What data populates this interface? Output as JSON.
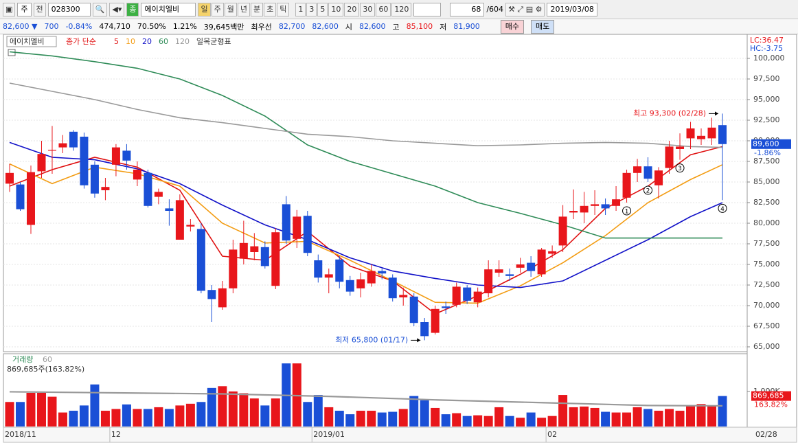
{
  "toolbar": {
    "period_type": "주",
    "market": "전",
    "code": "028300",
    "badge": "종",
    "name": "에이치엘비",
    "periods": [
      "일",
      "주",
      "월",
      "년",
      "분",
      "초",
      "틱"
    ],
    "active_period": "일",
    "intervals": [
      "1",
      "3",
      "5",
      "10",
      "20",
      "30",
      "60",
      "120"
    ],
    "count": "68",
    "total": "/604",
    "date": "2019/03/08"
  },
  "quote": {
    "fields": [
      {
        "text": "82,600 ▼",
        "tone": "down"
      },
      {
        "text": "700",
        "tone": "down"
      },
      {
        "text": "-0.84%",
        "tone": "down"
      },
      {
        "text": "474,710",
        "tone": "plain"
      },
      {
        "text": "70.50%",
        "tone": "plain"
      },
      {
        "text": "1.21%",
        "tone": "plain"
      },
      {
        "text": "39,645백만",
        "tone": "plain"
      },
      {
        "text": "최우선",
        "tone": "plain"
      },
      {
        "text": "82,700",
        "tone": "down"
      },
      {
        "text": "82,600",
        "tone": "down"
      },
      {
        "text": "시",
        "tone": "plain"
      },
      {
        "text": "82,600",
        "tone": "down"
      },
      {
        "text": "고",
        "tone": "plain"
      },
      {
        "text": "85,100",
        "tone": "up"
      },
      {
        "text": "저",
        "tone": "plain"
      },
      {
        "text": "81,900",
        "tone": "down"
      }
    ],
    "buttons": [
      "매수",
      "매도"
    ]
  },
  "chart_data": [
    {
      "type": "candlestick",
      "legend_name": "에이치엘비",
      "ma_label": "종가 단순",
      "ichimoku": "일목균형표",
      "side_labels": [
        "LC:36.47",
        "HC:-3.75"
      ],
      "up_color": "#e8161b",
      "down_color": "#1a4fd6",
      "open": [
        84800,
        84700,
        79800,
        86300,
        88800,
        89200,
        91100,
        90500,
        87100,
        84000,
        87100,
        88800,
        85300,
        86100,
        83200,
        81800,
        78000,
        79600,
        79300,
        71900,
        69800,
        72100,
        75700,
        76500,
        77100,
        72400,
        82300,
        78100,
        80900,
        75500,
        73400,
        75600,
        73100,
        72100,
        72700,
        74200,
        73400,
        71000,
        71100,
        68000,
        66700,
        69900,
        70100,
        72200,
        70400,
        71500,
        74000,
        73800,
        74600,
        75200,
        73800,
        76300,
        77300,
        81300,
        81300,
        82100,
        82300,
        82100,
        83100,
        86100,
        86900,
        84600,
        86700,
        89000,
        90300,
        90200,
        90300,
        91900
      ],
      "high": [
        87200,
        85000,
        87000,
        90000,
        91800,
        90700,
        91300,
        91000,
        87500,
        85500,
        89600,
        89600,
        87500,
        86500,
        84200,
        82900,
        83500,
        80500,
        80000,
        72500,
        73000,
        78000,
        80300,
        78800,
        77800,
        79400,
        83300,
        81600,
        81500,
        76200,
        74500,
        76000,
        73600,
        74000,
        75000,
        74500,
        73800,
        72200,
        71500,
        68500,
        70000,
        70500,
        72800,
        72500,
        72200,
        75500,
        75500,
        74500,
        75800,
        76000,
        77000,
        77300,
        82200,
        84100,
        83800,
        84000,
        83000,
        84500,
        86500,
        87800,
        88000,
        86800,
        90000,
        90900,
        92300,
        91500,
        92800,
        93300
      ],
      "low": [
        83800,
        81500,
        78700,
        85500,
        86000,
        88500,
        88800,
        84200,
        83100,
        82800,
        85700,
        86500,
        84500,
        81900,
        82300,
        79700,
        78000,
        79000,
        71500,
        68000,
        69500,
        71500,
        75000,
        75500,
        74500,
        72000,
        77500,
        77000,
        76000,
        72800,
        71500,
        72100,
        71200,
        71000,
        72300,
        73200,
        70500,
        70000,
        67500,
        65800,
        66500,
        69000,
        69800,
        70200,
        69800,
        71000,
        73500,
        73000,
        74000,
        73500,
        73500,
        75800,
        76500,
        80500,
        80000,
        81000,
        81000,
        81500,
        82500,
        85000,
        85000,
        83000,
        86000,
        87700,
        89000,
        89500,
        89500,
        82800
      ],
      "close": [
        86100,
        81700,
        86200,
        88400,
        88900,
        89700,
        89200,
        84600,
        83600,
        84400,
        89200,
        87600,
        86500,
        82100,
        83800,
        81500,
        82800,
        79800,
        71800,
        70800,
        72100,
        76800,
        77600,
        77200,
        74800,
        78900,
        77900,
        80800,
        76400,
        73400,
        73800,
        72900,
        71700,
        73200,
        74200,
        73900,
        70900,
        71300,
        67900,
        66300,
        69600,
        69700,
        72300,
        70600,
        71700,
        74400,
        74400,
        73600,
        75000,
        74200,
        76800,
        76600,
        80800,
        81500,
        82100,
        82300,
        81800,
        82900,
        86100,
        86900,
        85400,
        86400,
        89300,
        89300,
        91500,
        90600,
        91600,
        89600
      ],
      "series": [
        {
          "name": "5",
          "color": "#e01010",
          "x": [
            0,
            4,
            8,
            12,
            16,
            20,
            24,
            28,
            32,
            36,
            40,
            44,
            48,
            52,
            56,
            60,
            64,
            67
          ],
          "values": [
            84500,
            86500,
            88000,
            86800,
            84000,
            76000,
            75500,
            79000,
            74800,
            73000,
            69000,
            71200,
            73800,
            76800,
            81800,
            84500,
            88300,
            89300
          ]
        },
        {
          "name": "10",
          "color": "#f39c12",
          "x": [
            0,
            4,
            8,
            12,
            16,
            20,
            24,
            28,
            32,
            36,
            40,
            44,
            48,
            52,
            56,
            60,
            64,
            67
          ],
          "values": [
            87200,
            84800,
            86800,
            86000,
            84500,
            80000,
            77600,
            77800,
            75500,
            73000,
            70400,
            70300,
            72400,
            75200,
            78500,
            82500,
            85300,
            87100
          ]
        },
        {
          "name": "20",
          "color": "#1010c8",
          "x": [
            0,
            4,
            8,
            12,
            16,
            20,
            24,
            28,
            32,
            36,
            40,
            44,
            48,
            52,
            56,
            60,
            64,
            67
          ],
          "values": [
            89800,
            88000,
            87700,
            86600,
            84800,
            82200,
            79800,
            78000,
            75800,
            74200,
            73300,
            72500,
            72200,
            73000,
            75500,
            78000,
            80800,
            82500
          ]
        },
        {
          "name": "60",
          "color": "#2e8b57",
          "x": [
            0,
            4,
            8,
            12,
            16,
            20,
            24,
            28,
            32,
            36,
            40,
            44,
            48,
            52,
            56,
            60,
            64,
            67
          ],
          "values": [
            100800,
            100300,
            99600,
            98800,
            97500,
            95500,
            93000,
            89500,
            87500,
            86000,
            84500,
            82500,
            81200,
            79800,
            78200,
            78200,
            78200,
            78200
          ]
        },
        {
          "name": "120",
          "color": "#999999",
          "x": [
            0,
            4,
            8,
            12,
            16,
            20,
            24,
            28,
            32,
            36,
            40,
            44,
            48,
            52,
            56,
            60,
            64,
            67
          ],
          "values": [
            97000,
            96000,
            95000,
            93800,
            92800,
            92200,
            91500,
            90800,
            90500,
            90000,
            89700,
            89400,
            89500,
            89700,
            89800,
            89700,
            89300,
            89200
          ]
        }
      ],
      "ylim": [
        64250,
        102250
      ],
      "yticks": [
        {
          "value": 65000,
          "label": "65,000"
        },
        {
          "value": 67500,
          "label": "67,500"
        },
        {
          "value": 70000,
          "label": "70,000"
        },
        {
          "value": 72500,
          "label": "72,500"
        },
        {
          "value": 75000,
          "label": "75,000"
        },
        {
          "value": 77500,
          "label": "77,500"
        },
        {
          "value": 80000,
          "label": "80,000"
        },
        {
          "value": 82500,
          "label": "82,500"
        },
        {
          "value": 85000,
          "label": "85,000"
        },
        {
          "value": 87500,
          "label": "87,500"
        },
        {
          "value": 90000,
          "label": "90,000"
        },
        {
          "value": 92500,
          "label": "92,500"
        },
        {
          "value": 95000,
          "label": "95,000"
        },
        {
          "value": 97500,
          "label": "97,500"
        },
        {
          "value": 100000,
          "label": "100,000"
        }
      ],
      "current": {
        "value": 89600,
        "label": "89,600",
        "change": "-1.86%"
      },
      "annotations": [
        {
          "text": "최고 93,300 (02/28)",
          "index": 67,
          "value": 93300,
          "color": "#e8161b"
        },
        {
          "text": "최저 65,800 (01/17)",
          "index": 39,
          "value": 65800,
          "color": "#1a4fd6"
        }
      ],
      "markers": [
        {
          "label": "1",
          "index": 58
        },
        {
          "label": "2",
          "index": 60
        },
        {
          "label": "3",
          "index": 63
        },
        {
          "label": "4",
          "index": 67
        }
      ],
      "grid": true
    },
    {
      "type": "bar",
      "title": "거래량",
      "ma_name": "60",
      "info": "869,685주(163.82%)",
      "values": [
        700000,
        700000,
        960000,
        960000,
        850000,
        400000,
        450000,
        600000,
        1200000,
        450000,
        500000,
        630000,
        500000,
        500000,
        550000,
        500000,
        600000,
        650000,
        700000,
        1100000,
        1150000,
        1000000,
        950000,
        800000,
        600000,
        800000,
        1800000,
        1800000,
        700000,
        900000,
        550000,
        450000,
        350000,
        450000,
        450000,
        400000,
        420000,
        500000,
        870000,
        750000,
        530000,
        350000,
        380000,
        300000,
        320000,
        300000,
        550000,
        300000,
        250000,
        400000,
        250000,
        300000,
        900000,
        550000,
        570000,
        530000,
        420000,
        400000,
        400000,
        550000,
        500000,
        450000,
        500000,
        450000,
        600000,
        640000,
        600000,
        869685
      ],
      "ma": {
        "color": "#999999",
        "x": [
          0,
          10,
          20,
          30,
          40,
          50,
          60,
          67
        ],
        "values": [
          990000,
          960000,
          930000,
          860000,
          760000,
          680000,
          600000,
          590000
        ]
      },
      "ylim": [
        0,
        1900000
      ],
      "yticks": [
        {
          "value": 1000000,
          "label": "1,000K"
        }
      ],
      "current": {
        "value": 869685,
        "label": "869,685",
        "change": "163.82%"
      },
      "x_labels": [
        {
          "index": 0,
          "label": "2018/11"
        },
        {
          "index": 10,
          "label": "12"
        },
        {
          "index": 29,
          "label": "2019/01"
        },
        {
          "index": 51,
          "label": "02"
        }
      ],
      "last_label": "02/28"
    }
  ]
}
